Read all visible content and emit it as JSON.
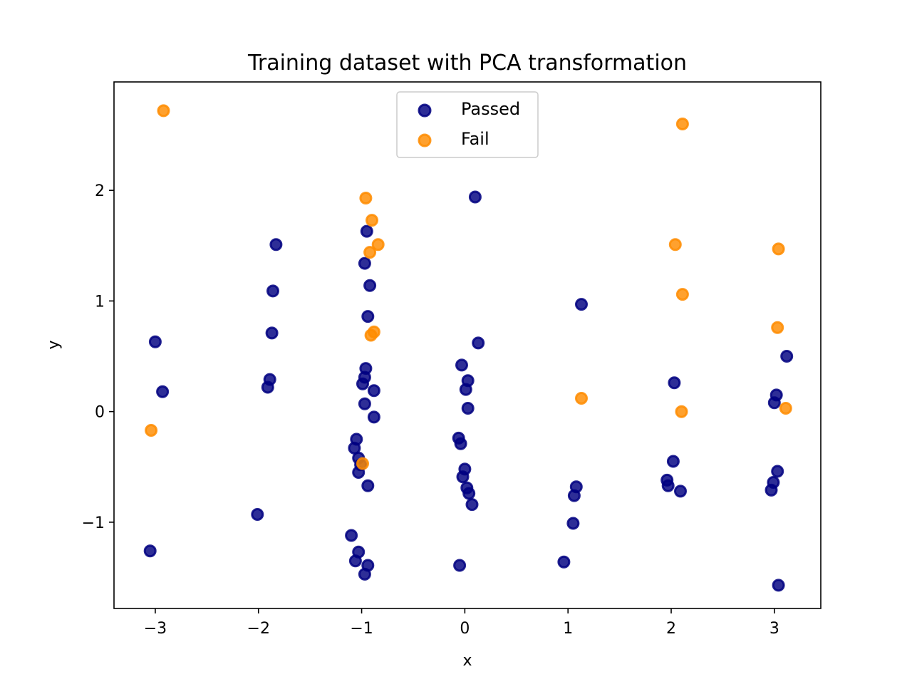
{
  "chart_data": {
    "type": "scatter",
    "title": "Training dataset with PCA transformation",
    "xlabel": "x",
    "ylabel": "y",
    "xlim": [
      -3.4,
      3.45
    ],
    "ylim": [
      -1.78,
      2.98
    ],
    "xticks": [
      -3,
      -2,
      -1,
      0,
      1,
      2,
      3
    ],
    "yticks": [
      -1,
      0,
      1,
      2
    ],
    "grid": false,
    "legend": "top-center",
    "series": [
      {
        "name": "Passed",
        "color": "#000080",
        "points": [
          [
            -3.0,
            0.63
          ],
          [
            -2.93,
            0.18
          ],
          [
            -3.05,
            -1.26
          ],
          [
            -1.83,
            1.51
          ],
          [
            -1.86,
            1.09
          ],
          [
            -1.87,
            0.71
          ],
          [
            -1.89,
            0.29
          ],
          [
            -1.91,
            0.22
          ],
          [
            -2.01,
            -0.93
          ],
          [
            -0.95,
            1.63
          ],
          [
            -0.97,
            1.34
          ],
          [
            -0.92,
            1.14
          ],
          [
            -0.94,
            0.86
          ],
          [
            -0.96,
            0.39
          ],
          [
            -0.97,
            0.31
          ],
          [
            -0.99,
            0.25
          ],
          [
            -0.88,
            0.19
          ],
          [
            -0.97,
            0.07
          ],
          [
            -0.88,
            -0.05
          ],
          [
            -1.05,
            -0.25
          ],
          [
            -1.07,
            -0.33
          ],
          [
            -1.03,
            -0.42
          ],
          [
            -1.01,
            -0.48
          ],
          [
            -1.03,
            -0.55
          ],
          [
            -0.94,
            -0.67
          ],
          [
            -1.1,
            -1.12
          ],
          [
            -1.03,
            -1.27
          ],
          [
            -1.06,
            -1.35
          ],
          [
            -0.94,
            -1.39
          ],
          [
            -0.97,
            -1.47
          ],
          [
            0.1,
            1.94
          ],
          [
            0.13,
            0.62
          ],
          [
            -0.03,
            0.42
          ],
          [
            0.03,
            0.28
          ],
          [
            0.01,
            0.2
          ],
          [
            0.03,
            0.03
          ],
          [
            -0.06,
            -0.24
          ],
          [
            -0.04,
            -0.29
          ],
          [
            0.0,
            -0.52
          ],
          [
            -0.02,
            -0.59
          ],
          [
            0.02,
            -0.69
          ],
          [
            0.04,
            -0.74
          ],
          [
            0.07,
            -0.84
          ],
          [
            -0.05,
            -1.39
          ],
          [
            1.13,
            0.97
          ],
          [
            1.08,
            -0.68
          ],
          [
            1.06,
            -0.76
          ],
          [
            1.05,
            -1.01
          ],
          [
            0.96,
            -1.36
          ],
          [
            2.03,
            0.26
          ],
          [
            2.02,
            -0.45
          ],
          [
            1.96,
            -0.62
          ],
          [
            1.97,
            -0.67
          ],
          [
            2.09,
            -0.72
          ],
          [
            3.12,
            0.5
          ],
          [
            3.02,
            0.15
          ],
          [
            3.0,
            0.08
          ],
          [
            3.03,
            -0.54
          ],
          [
            2.99,
            -0.64
          ],
          [
            2.97,
            -0.71
          ],
          [
            3.04,
            -1.57
          ]
        ]
      },
      {
        "name": "Fail",
        "color": "#ff8c00",
        "points": [
          [
            -2.92,
            2.72
          ],
          [
            -3.04,
            -0.17
          ],
          [
            -0.96,
            1.93
          ],
          [
            -0.9,
            1.73
          ],
          [
            -0.84,
            1.51
          ],
          [
            -0.92,
            1.44
          ],
          [
            -0.88,
            0.72
          ],
          [
            -0.91,
            0.69
          ],
          [
            -0.99,
            -0.47
          ],
          [
            2.11,
            2.6
          ],
          [
            2.04,
            1.51
          ],
          [
            2.11,
            1.06
          ],
          [
            2.1,
            0.0
          ],
          [
            1.13,
            0.12
          ],
          [
            3.04,
            1.47
          ],
          [
            3.03,
            0.76
          ],
          [
            3.11,
            0.03
          ]
        ]
      }
    ]
  }
}
